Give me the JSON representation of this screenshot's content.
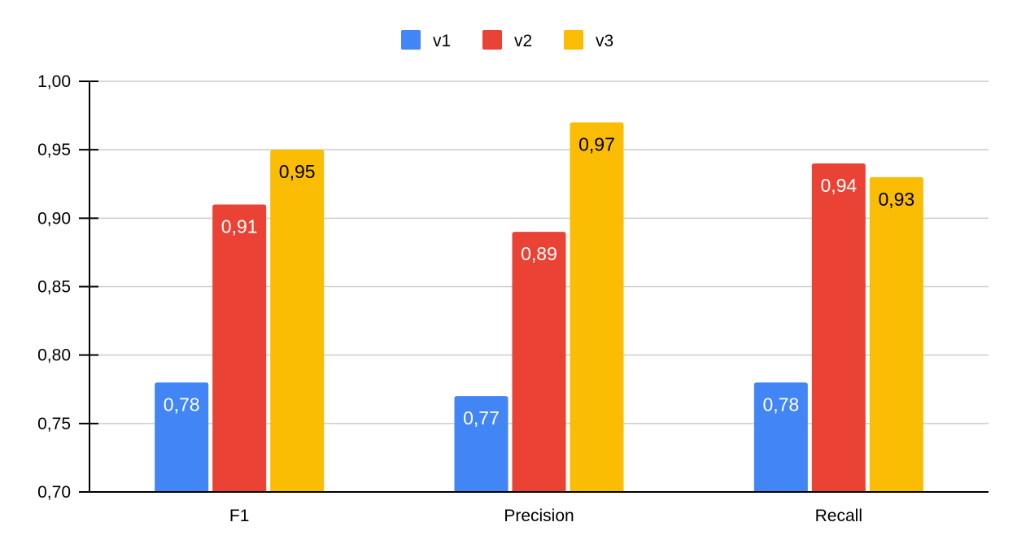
{
  "chart_data": {
    "type": "bar",
    "categories": [
      "F1",
      "Precision",
      "Recall"
    ],
    "series": [
      {
        "name": "v1",
        "color": "#4285f4",
        "label_color": "#ffffff",
        "values": [
          0.78,
          0.77,
          0.78
        ],
        "labels": [
          "0,78",
          "0,77",
          "0,78"
        ]
      },
      {
        "name": "v2",
        "color": "#ea4335",
        "label_color": "#ffffff",
        "values": [
          0.91,
          0.89,
          0.94
        ],
        "labels": [
          "0,91",
          "0,89",
          "0,94"
        ]
      },
      {
        "name": "v3",
        "color": "#fbbc04",
        "label_color": "#000000",
        "values": [
          0.95,
          0.97,
          0.93
        ],
        "labels": [
          "0,95",
          "0,97",
          "0,93"
        ]
      }
    ],
    "ylim": [
      0.7,
      1.0
    ],
    "yticks": [
      0.7,
      0.75,
      0.8,
      0.85,
      0.9,
      0.95,
      1.0
    ],
    "ytick_labels": [
      "0,70",
      "0,75",
      "0,80",
      "0,85",
      "0,90",
      "0,95",
      "1,00"
    ],
    "grid": true,
    "legend_position": "top-center",
    "title": "",
    "xlabel": "",
    "ylabel": ""
  }
}
